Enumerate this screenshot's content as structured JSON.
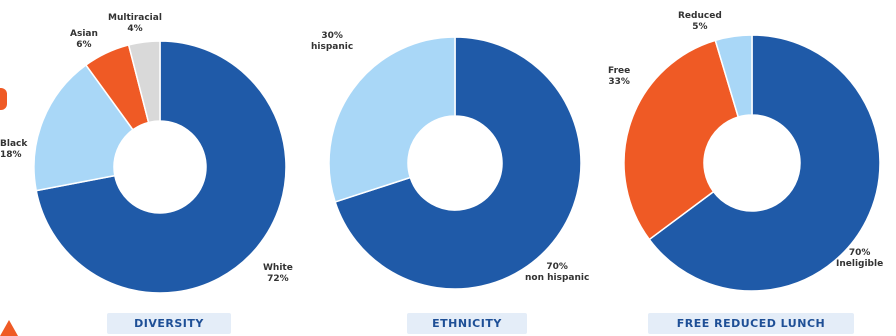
{
  "chart_data": [
    {
      "type": "pie",
      "title": "DIVERSITY",
      "slices": [
        {
          "label": "White",
          "value": 72,
          "value_text": "72%",
          "color": "#1f5aa8"
        },
        {
          "label": "Black",
          "value": 18,
          "value_text": "18%",
          "color": "#a9d7f7"
        },
        {
          "label": "Asian",
          "value": 6,
          "value_text": "6%",
          "color": "#ef5a25"
        },
        {
          "label": "Multiracial",
          "value": 4,
          "value_text": "4%",
          "color": "#d9d9d9"
        }
      ]
    },
    {
      "type": "pie",
      "title": "ETHNICITY",
      "slices": [
        {
          "label": "non hispanic",
          "value": 70,
          "value_text": "70%",
          "color": "#1f5aa8"
        },
        {
          "label": "hispanic",
          "value": 30,
          "value_text": "30%",
          "color": "#a9d7f7"
        }
      ]
    },
    {
      "type": "pie",
      "title": "FREE REDUCED LUNCH",
      "slices": [
        {
          "label": "Ineligible",
          "value": 70,
          "value_text": "70%",
          "color": "#1f5aa8"
        },
        {
          "label": "Free",
          "value": 33,
          "value_text": "33%",
          "color": "#ef5a25"
        },
        {
          "label": "Reduced",
          "value": 5,
          "value_text": "5%",
          "color": "#a9d7f7"
        }
      ]
    }
  ]
}
